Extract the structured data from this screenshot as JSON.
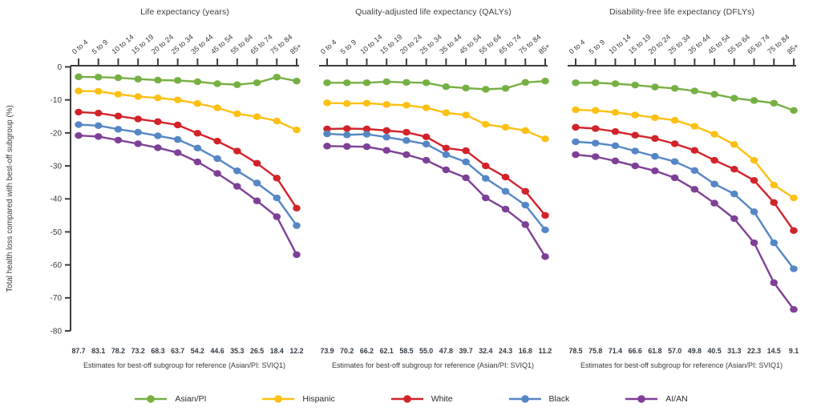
{
  "figure": {
    "y_axis_label": "Total health loss compared with best-off subgroup (%)",
    "y_ticks": [
      0,
      -10,
      -20,
      -30,
      -40,
      -50,
      -60,
      -70,
      -80
    ],
    "axis_color": "#3d3d3d",
    "text_color": "#3a3a3a",
    "ref_number_color": "#333b45"
  },
  "legend": [
    {
      "label": "Asian/PI",
      "color": "#76B043"
    },
    {
      "label": "Hispanic",
      "color": "#FDC013"
    },
    {
      "label": "White",
      "color": "#D2232A"
    },
    {
      "label": "Black",
      "color": "#5586C6"
    },
    {
      "label": "AI/AN",
      "color": "#7E4096"
    }
  ],
  "chart_data": [
    {
      "type": "line",
      "title": "Life expectancy (years)",
      "x_categories": [
        "0 to 4",
        "5 to 9",
        "10 to 14",
        "15 to 19",
        "20 to 24",
        "25 to 34",
        "35 to 44",
        "45 to 54",
        "55 to 64",
        "65 to 74",
        "75 to 84",
        "85+"
      ],
      "ylabel": "Total health loss compared with best-off subgroup (%)",
      "ylim": [
        -80,
        0
      ],
      "grid": false,
      "series": [
        {
          "name": "Asian/PI",
          "color": "#76B043",
          "values": [
            -3.0,
            -3.1,
            -3.3,
            -3.7,
            -4.0,
            -4.1,
            -4.5,
            -5.1,
            -5.4,
            -4.8,
            -3.1,
            -4.3
          ]
        },
        {
          "name": "Hispanic",
          "color": "#FDC013",
          "values": [
            -7.3,
            -7.4,
            -8.3,
            -9.0,
            -9.4,
            -10.0,
            -11.1,
            -12.4,
            -14.2,
            -15.1,
            -16.4,
            -19.1
          ]
        },
        {
          "name": "White",
          "color": "#D2232A",
          "values": [
            -13.7,
            -14.0,
            -14.9,
            -15.8,
            -16.6,
            -17.6,
            -20.1,
            -22.5,
            -25.5,
            -29.2,
            -33.7,
            -42.8
          ]
        },
        {
          "name": "Black",
          "color": "#5586C6",
          "values": [
            -17.5,
            -17.8,
            -18.9,
            -19.8,
            -20.9,
            -22.0,
            -24.6,
            -27.8,
            -31.5,
            -35.2,
            -39.7,
            -48.1
          ]
        },
        {
          "name": "AI/AN",
          "color": "#7E4096",
          "values": [
            -20.8,
            -21.1,
            -22.2,
            -23.3,
            -24.5,
            -26.0,
            -28.8,
            -32.3,
            -36.2,
            -40.6,
            -45.4,
            -56.9
          ]
        }
      ],
      "reference_values": [
        "87.7",
        "83.1",
        "78.2",
        "73.2",
        "68.3",
        "63.7",
        "54.2",
        "44.6",
        "35.3",
        "26.5",
        "18.4",
        "12.2"
      ],
      "reference_caption": "Estimates for best-off subgroup for reference (Asian/PI: SVIQ1)"
    },
    {
      "type": "line",
      "title": "Quality-adjusted life expectancy (QALYs)",
      "x_categories": [
        "0 to 4",
        "5 to 9",
        "10 to 14",
        "15 to 19",
        "20 to 24",
        "25 to 34",
        "35 to 44",
        "45 to 54",
        "55 to 64",
        "65 to 74",
        "75 to 84",
        "85+"
      ],
      "ylabel": "Total health loss compared with best-off subgroup (%)",
      "ylim": [
        -80,
        0
      ],
      "grid": false,
      "series": [
        {
          "name": "Asian/PI",
          "color": "#76B043",
          "values": [
            -4.8,
            -4.8,
            -4.8,
            -4.5,
            -4.7,
            -4.8,
            -6.0,
            -6.4,
            -6.8,
            -6.5,
            -4.7,
            -4.3
          ]
        },
        {
          "name": "Hispanic",
          "color": "#FDC013",
          "values": [
            -10.9,
            -11.1,
            -11.0,
            -11.4,
            -11.6,
            -12.4,
            -13.9,
            -14.6,
            -17.4,
            -18.3,
            -19.3,
            -21.8
          ]
        },
        {
          "name": "White",
          "color": "#D2232A",
          "values": [
            -18.8,
            -18.7,
            -18.8,
            -19.3,
            -19.8,
            -21.2,
            -24.6,
            -25.4,
            -30.0,
            -33.4,
            -37.7,
            -45.0
          ]
        },
        {
          "name": "Black",
          "color": "#5586C6",
          "values": [
            -20.3,
            -20.6,
            -20.4,
            -21.3,
            -22.3,
            -23.4,
            -26.6,
            -28.8,
            -33.8,
            -37.7,
            -41.9,
            -49.4
          ]
        },
        {
          "name": "AI/AN",
          "color": "#7E4096",
          "values": [
            -24.0,
            -24.1,
            -24.2,
            -25.3,
            -26.6,
            -28.3,
            -31.2,
            -33.6,
            -39.7,
            -43.1,
            -47.8,
            -57.5
          ]
        }
      ],
      "reference_values": [
        "73.9",
        "70.2",
        "66.2",
        "62.1",
        "58.5",
        "55.0",
        "47.8",
        "39.7",
        "32.4",
        "24.3",
        "16.8",
        "11.2"
      ],
      "reference_caption": "Estimates for best-off subgroup for reference (Asian/PI: SVIQ1)"
    },
    {
      "type": "line",
      "title": "Disability-free life expectancy (DFLYs)",
      "x_categories": [
        "0 to 4",
        "5 to 9",
        "10 to 14",
        "15 to 19",
        "20 to 24",
        "25 to 34",
        "35 to 44",
        "45 to 54",
        "55 to 64",
        "65 to 74",
        "75 to 84",
        "85+"
      ],
      "ylabel": "Total health loss compared with best-off subgroup (%)",
      "ylim": [
        -80,
        0
      ],
      "grid": false,
      "series": [
        {
          "name": "Asian/PI",
          "color": "#76B043",
          "values": [
            -4.8,
            -4.8,
            -5.1,
            -5.5,
            -6.1,
            -6.5,
            -7.3,
            -8.3,
            -9.5,
            -10.2,
            -11.0,
            -13.2
          ]
        },
        {
          "name": "Hispanic",
          "color": "#FDC013",
          "values": [
            -13.0,
            -13.2,
            -13.8,
            -14.6,
            -15.4,
            -16.2,
            -18.0,
            -20.4,
            -23.5,
            -28.3,
            -35.8,
            -39.7
          ]
        },
        {
          "name": "White",
          "color": "#D2232A",
          "values": [
            -18.3,
            -18.7,
            -19.6,
            -20.7,
            -21.7,
            -23.3,
            -25.3,
            -28.3,
            -31.0,
            -34.4,
            -41.1,
            -49.6
          ]
        },
        {
          "name": "Black",
          "color": "#5586C6",
          "values": [
            -22.7,
            -23.1,
            -23.9,
            -25.5,
            -27.1,
            -28.7,
            -31.4,
            -35.5,
            -38.5,
            -43.9,
            -53.3,
            -61.2
          ]
        },
        {
          "name": "AI/AN",
          "color": "#7E4096",
          "values": [
            -26.6,
            -27.2,
            -28.5,
            -30.0,
            -31.5,
            -33.6,
            -37.1,
            -41.3,
            -46.0,
            -53.3,
            -65.4,
            -73.5
          ]
        }
      ],
      "reference_values": [
        "78.5",
        "75.8",
        "71.4",
        "66.6",
        "61.8",
        "57.0",
        "49.8",
        "40.5",
        "31.3",
        "22.3",
        "14.5",
        "9.1"
      ],
      "reference_caption": "Estimates for best-off subgroup for reference (Asian/PI: SVIQ1)"
    }
  ]
}
